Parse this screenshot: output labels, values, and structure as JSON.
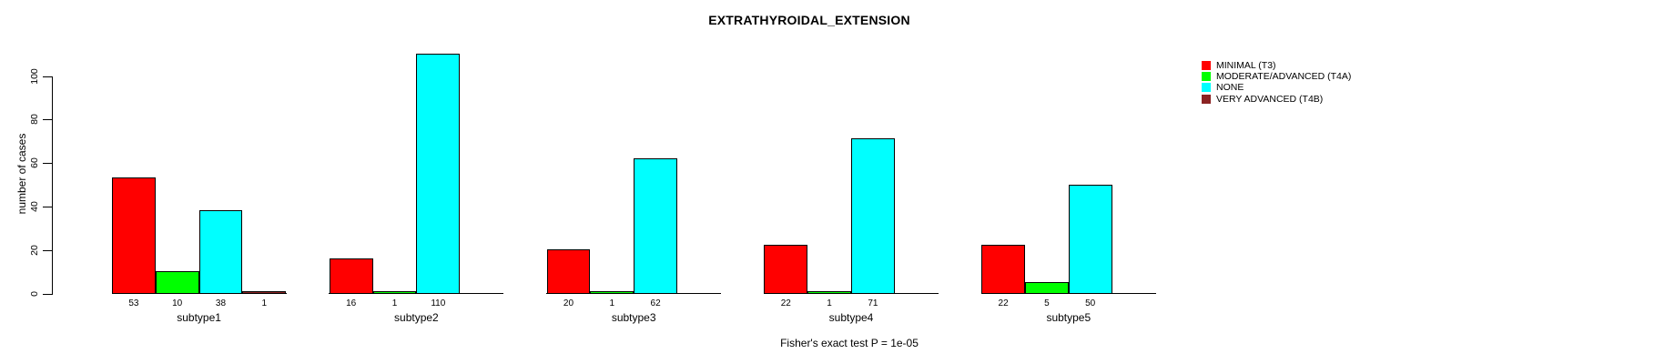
{
  "figure": {
    "title": "EXTRATHYROIDAL_EXTENSION",
    "caption": "Fisher's exact test P = 1e-05"
  },
  "chart_data": {
    "type": "bar",
    "title": "EXTRATHYROIDAL_EXTENSION",
    "xlabel": "",
    "ylabel": "number of cases",
    "categories": [
      "subtype1",
      "subtype2",
      "subtype3",
      "subtype4",
      "subtype5"
    ],
    "series": [
      {
        "name": "MINIMAL (T3)",
        "color": "#ff0000",
        "values": [
          53,
          16,
          20,
          22,
          22
        ]
      },
      {
        "name": "MODERATE/ADVANCED (T4A)",
        "color": "#00ff00",
        "values": [
          10,
          1,
          1,
          1,
          5
        ]
      },
      {
        "name": "NONE",
        "color": "#00ffff",
        "values": [
          38,
          110,
          62,
          71,
          50
        ]
      },
      {
        "name": "VERY ADVANCED (T4B)",
        "color": "#8b2323",
        "values": [
          1,
          0,
          0,
          0,
          0
        ]
      }
    ],
    "ylim": [
      0,
      110
    ],
    "yticks": [
      0,
      20,
      40,
      60,
      80,
      100
    ],
    "bar_value_labels": true,
    "zero_values_unlabeled": true,
    "legend_position": "right",
    "grid": false,
    "annotation": "Fisher's exact test P = 1e-05",
    "colors": {
      "background": "#ffffff",
      "axis": "#000000",
      "text": "#000000"
    }
  }
}
